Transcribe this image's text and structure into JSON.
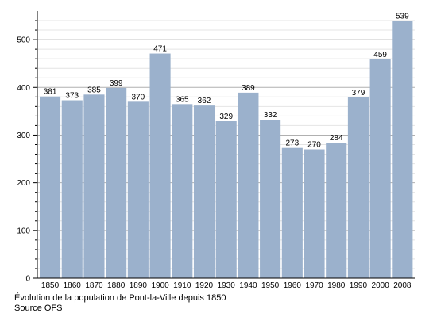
{
  "chart_data": {
    "type": "bar",
    "categories": [
      "1850",
      "1860",
      "1870",
      "1880",
      "1890",
      "1900",
      "1910",
      "1920",
      "1930",
      "1940",
      "1950",
      "1960",
      "1970",
      "1980",
      "1990",
      "2000",
      "2008"
    ],
    "values": [
      381,
      373,
      385,
      399,
      370,
      471,
      365,
      362,
      329,
      389,
      332,
      273,
      270,
      284,
      379,
      459,
      539
    ],
    "ylim": [
      0,
      550
    ],
    "yticks": [
      0,
      100,
      200,
      300,
      400,
      500
    ],
    "grid": true,
    "bar_color": "#9bb1cc",
    "caption": "Évolution de la population de Pont-la-Ville depuis 1850",
    "source": "Source OFS"
  }
}
